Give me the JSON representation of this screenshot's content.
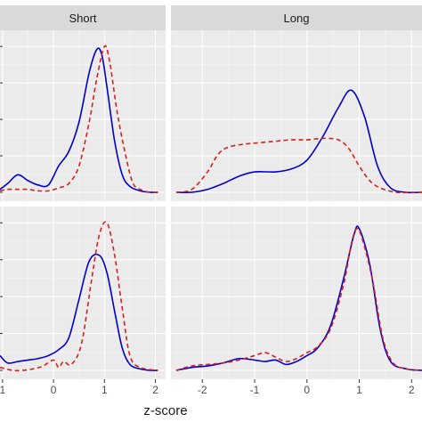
{
  "chart_data": {
    "type": "line",
    "xlabel": "z-score",
    "facet_columns": [
      "Short",
      "Long"
    ],
    "x_ticks": {
      "Short": [
        1,
        0,
        1,
        2
      ],
      "Long": [
        -2,
        -1,
        0,
        1,
        2
      ]
    },
    "x_tick_labels": {
      "Short": [
        "1",
        "0",
        "1",
        "2"
      ],
      "Long": [
        "-2",
        "-1",
        "0",
        "1",
        "2"
      ]
    },
    "xlim": {
      "Short": [
        -1.05,
        2.2
      ],
      "Long": [
        -2.6,
        2.2
      ]
    },
    "ylim": [
      0,
      1.05
    ],
    "grid": true,
    "series_styles": [
      {
        "line": "solid",
        "color": "#0000c8"
      },
      {
        "line": "dashed",
        "color": "#d62020"
      }
    ],
    "panels": [
      {
        "row": 1,
        "column": "Short",
        "series": [
          {
            "x": [
              -1.05,
              -0.9,
              -0.7,
              -0.5,
              -0.3,
              -0.1,
              0.1,
              0.3,
              0.5,
              0.7,
              0.85,
              0.95,
              1.05,
              1.2,
              1.35,
              1.5,
              1.7,
              1.9,
              2.05
            ],
            "y": [
              0.02,
              0.06,
              0.12,
              0.08,
              0.05,
              0.05,
              0.18,
              0.28,
              0.48,
              0.82,
              0.98,
              0.94,
              0.72,
              0.35,
              0.12,
              0.04,
              0.01,
              0.0,
              0.0
            ]
          },
          {
            "x": [
              -1.05,
              -0.9,
              -0.7,
              -0.5,
              -0.3,
              -0.1,
              0.1,
              0.3,
              0.5,
              0.7,
              0.85,
              1.0,
              1.1,
              1.25,
              1.4,
              1.55,
              1.7,
              1.9,
              2.05
            ],
            "y": [
              0.01,
              0.02,
              0.02,
              0.02,
              0.01,
              0.01,
              0.03,
              0.06,
              0.18,
              0.48,
              0.78,
              1.0,
              0.9,
              0.55,
              0.28,
              0.07,
              0.02,
              0.0,
              0.0
            ]
          }
        ]
      },
      {
        "row": 1,
        "column": "Long",
        "series": [
          {
            "x": [
              -2.5,
              -2.2,
              -1.9,
              -1.6,
              -1.3,
              -1.0,
              -0.6,
              -0.3,
              0.0,
              0.3,
              0.6,
              0.85,
              1.1,
              1.35,
              1.6,
              1.9,
              2.2
            ],
            "y": [
              0.0,
              0.0,
              0.02,
              0.06,
              0.11,
              0.14,
              0.14,
              0.16,
              0.22,
              0.38,
              0.58,
              0.7,
              0.52,
              0.18,
              0.03,
              0.0,
              0.0
            ]
          },
          {
            "x": [
              -2.5,
              -2.2,
              -1.9,
              -1.7,
              -1.5,
              -1.2,
              -0.9,
              -0.6,
              -0.3,
              0.0,
              0.3,
              0.6,
              0.8,
              1.0,
              1.2,
              1.4,
              1.7,
              2.0,
              2.2
            ],
            "y": [
              0.0,
              0.02,
              0.14,
              0.26,
              0.31,
              0.33,
              0.34,
              0.35,
              0.36,
              0.36,
              0.37,
              0.36,
              0.3,
              0.18,
              0.08,
              0.03,
              0.0,
              0.0,
              0.0
            ]
          }
        ]
      },
      {
        "row": 2,
        "column": "Short",
        "series": [
          {
            "x": [
              -1.05,
              -0.9,
              -0.7,
              -0.5,
              -0.3,
              -0.1,
              0.1,
              0.3,
              0.5,
              0.7,
              0.9,
              1.05,
              1.2,
              1.35,
              1.5,
              1.7,
              1.9,
              2.05
            ],
            "y": [
              0.1,
              0.05,
              0.06,
              0.07,
              0.08,
              0.1,
              0.14,
              0.22,
              0.48,
              0.74,
              0.78,
              0.66,
              0.4,
              0.15,
              0.04,
              0.01,
              0.0,
              0.0
            ]
          },
          {
            "x": [
              -1.05,
              -0.8,
              -0.6,
              -0.4,
              -0.2,
              0.0,
              0.1,
              0.2,
              0.35,
              0.55,
              0.75,
              0.9,
              1.05,
              1.2,
              1.35,
              1.5,
              1.7,
              2.05
            ],
            "y": [
              0.02,
              0.0,
              0.0,
              0.01,
              0.03,
              0.07,
              0.02,
              0.06,
              0.04,
              0.18,
              0.62,
              0.92,
              1.0,
              0.78,
              0.42,
              0.1,
              0.02,
              0.0
            ]
          }
        ]
      },
      {
        "row": 2,
        "column": "Long",
        "series": [
          {
            "x": [
              -2.5,
              -2.2,
              -1.9,
              -1.6,
              -1.3,
              -1.0,
              -0.8,
              -0.6,
              -0.4,
              -0.2,
              0.0,
              0.2,
              0.45,
              0.7,
              0.9,
              1.0,
              1.2,
              1.4,
              1.6,
              1.9,
              2.2
            ],
            "y": [
              0.0,
              0.02,
              0.03,
              0.05,
              0.08,
              0.07,
              0.06,
              0.07,
              0.04,
              0.06,
              0.1,
              0.15,
              0.3,
              0.62,
              0.92,
              0.96,
              0.72,
              0.28,
              0.06,
              0.01,
              0.0
            ]
          },
          {
            "x": [
              -2.5,
              -2.2,
              -1.9,
              -1.6,
              -1.3,
              -1.0,
              -0.8,
              -0.6,
              -0.4,
              -0.2,
              0.0,
              0.2,
              0.45,
              0.7,
              0.85,
              0.95,
              1.05,
              1.25,
              1.45,
              1.65,
              1.9,
              2.2
            ],
            "y": [
              0.0,
              0.03,
              0.04,
              0.05,
              0.07,
              0.1,
              0.12,
              0.09,
              0.06,
              0.08,
              0.12,
              0.16,
              0.28,
              0.58,
              0.86,
              0.96,
              0.9,
              0.62,
              0.22,
              0.05,
              0.01,
              0.0
            ]
          }
        ]
      }
    ]
  }
}
